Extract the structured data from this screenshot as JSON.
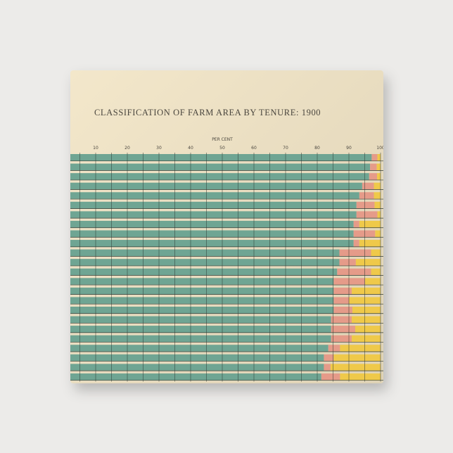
{
  "chart_data": {
    "type": "bar",
    "orientation": "horizontal",
    "stacked": true,
    "title": "CLASSIFICATION OF FARM AREA BY TENURE: 1900",
    "xlabel": "PER CENT",
    "xticks": [
      "10",
      "20",
      "30",
      "40",
      "50",
      "60",
      "70",
      "80",
      "90",
      "100"
    ],
    "xlim": [
      0,
      100
    ],
    "grid": true,
    "legend": "none",
    "series": [
      {
        "color": "#6fa593",
        "values": [
          97.2,
          96.7,
          96.4,
          94.2,
          93.3,
          92.4,
          92.4,
          91.5,
          91.5,
          91.5,
          87.0,
          87.0,
          86.3,
          85.2,
          85.2,
          85.2,
          85.2,
          84.4,
          84.4,
          84.4,
          83.5,
          82.1,
          82.1,
          81.3
        ]
      },
      {
        "color": "#e59b89",
        "values": [
          1.8,
          2.1,
          2.5,
          3.7,
          4.6,
          5.7,
          6.6,
          1.8,
          6.8,
          1.8,
          10.0,
          5.2,
          10.7,
          9.9,
          5.7,
          4.9,
          5.9,
          6.5,
          7.6,
          6.5,
          3.7,
          3.1,
          2.1,
          5.9
        ]
      },
      {
        "color": "#efc94a",
        "values": [
          1.0,
          1.2,
          1.1,
          2.1,
          2.1,
          1.9,
          1.0,
          6.7,
          1.7,
          6.7,
          3.0,
          7.8,
          3.0,
          4.9,
          9.1,
          9.9,
          8.9,
          9.1,
          8.0,
          9.1,
          12.8,
          14.8,
          15.8,
          12.8
        ]
      }
    ]
  }
}
